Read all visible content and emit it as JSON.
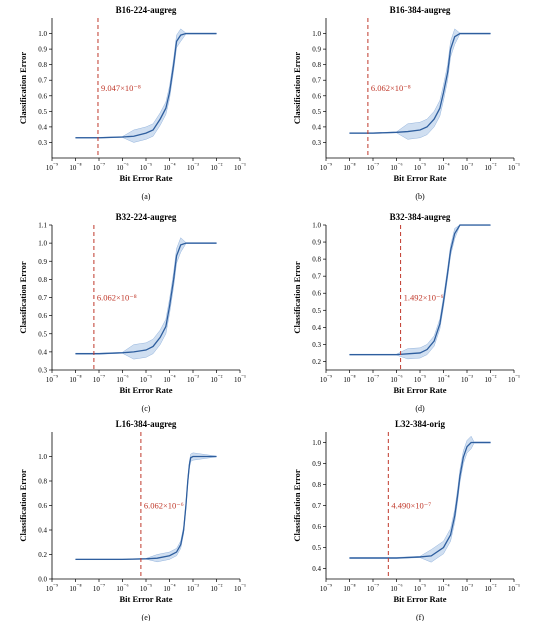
{
  "figure": {
    "xlabel": "Bit Error Rate",
    "ylabel": "Classification Error"
  },
  "chart_data": [
    {
      "type": "line",
      "title": "B16-224-augreg",
      "caption": "(a)",
      "xscale": "log",
      "xlim": [
        1e-09,
        0.1
      ],
      "ylim": [
        0.2,
        1.1
      ],
      "yticks": [
        0.3,
        0.4,
        0.5,
        0.6,
        0.7,
        0.8,
        0.9,
        1.0
      ],
      "threshold": {
        "x": 9.047e-08,
        "label": "9.047×10⁻⁸"
      },
      "series": [
        {
          "x": [
            1e-08,
            1e-07,
            1e-06,
            3e-06,
            1e-05,
            2e-05,
            4e-05,
            7e-05,
            0.0001,
            0.00015,
            0.0002,
            0.0003,
            0.0005,
            0.001,
            0.01
          ],
          "y": [
            0.33,
            0.33,
            0.335,
            0.34,
            0.36,
            0.38,
            0.45,
            0.52,
            0.62,
            0.8,
            0.95,
            0.99,
            1.0,
            1.0,
            1.0
          ]
        }
      ],
      "band_width": 0.04,
      "band_span": [
        3e-06,
        0.0003
      ]
    },
    {
      "type": "line",
      "title": "B16-384-augreg",
      "caption": "(b)",
      "xscale": "log",
      "xlim": [
        1e-09,
        0.1
      ],
      "ylim": [
        0.2,
        1.1
      ],
      "yticks": [
        0.3,
        0.4,
        0.5,
        0.6,
        0.7,
        0.8,
        0.9,
        1.0
      ],
      "threshold": {
        "x": 6.062e-08,
        "label": "6.062×10⁻⁸"
      },
      "series": [
        {
          "x": [
            1e-08,
            1e-07,
            1e-06,
            3e-06,
            1e-05,
            2e-05,
            4e-05,
            7e-05,
            0.0001,
            0.00015,
            0.0002,
            0.0003,
            0.0005,
            0.001,
            0.01
          ],
          "y": [
            0.36,
            0.36,
            0.365,
            0.37,
            0.38,
            0.4,
            0.45,
            0.52,
            0.62,
            0.75,
            0.9,
            0.98,
            1.0,
            1.0,
            1.0
          ]
        }
      ],
      "band_width": 0.05,
      "band_span": [
        3e-06,
        0.0003
      ]
    },
    {
      "type": "line",
      "title": "B32-224-augreg",
      "caption": "(c)",
      "xscale": "log",
      "xlim": [
        1e-09,
        0.1
      ],
      "ylim": [
        0.3,
        1.1
      ],
      "yticks": [
        0.3,
        0.4,
        0.5,
        0.6,
        0.7,
        0.8,
        0.9,
        1.0,
        1.1
      ],
      "threshold": {
        "x": 6.062e-08,
        "label": "6.062×10⁻⁸"
      },
      "series": [
        {
          "x": [
            1e-08,
            1e-07,
            1e-06,
            3e-06,
            1e-05,
            2e-05,
            4e-05,
            7e-05,
            0.0001,
            0.00015,
            0.0002,
            0.0003,
            0.0005,
            0.001,
            0.01
          ],
          "y": [
            0.39,
            0.39,
            0.395,
            0.4,
            0.41,
            0.43,
            0.48,
            0.54,
            0.65,
            0.8,
            0.93,
            0.99,
            1.0,
            1.0,
            1.0
          ]
        }
      ],
      "band_width": 0.04,
      "band_span": [
        3e-06,
        0.0003
      ]
    },
    {
      "type": "line",
      "title": "B32-384-augreg",
      "caption": "(d)",
      "xscale": "log",
      "xlim": [
        1e-09,
        0.1
      ],
      "ylim": [
        0.15,
        1.0
      ],
      "yticks": [
        0.2,
        0.3,
        0.4,
        0.5,
        0.6,
        0.7,
        0.8,
        0.9,
        1.0
      ],
      "threshold": {
        "x": 1.492e-06,
        "label": "1.492×10⁻⁶"
      },
      "series": [
        {
          "x": [
            1e-08,
            1e-07,
            1e-06,
            3e-06,
            1e-05,
            2e-05,
            4e-05,
            7e-05,
            0.0001,
            0.00015,
            0.0002,
            0.0003,
            0.0005,
            0.001,
            0.01
          ],
          "y": [
            0.24,
            0.24,
            0.24,
            0.245,
            0.25,
            0.27,
            0.32,
            0.42,
            0.55,
            0.72,
            0.85,
            0.95,
            1.0,
            1.0,
            1.0
          ]
        }
      ],
      "band_width": 0.03,
      "band_span": [
        3e-06,
        0.0003
      ]
    },
    {
      "type": "line",
      "title": "L16-384-augreg",
      "caption": "(e)",
      "xscale": "log",
      "xlim": [
        1e-09,
        0.1
      ],
      "ylim": [
        0.0,
        1.2
      ],
      "yticks": [
        0.0,
        0.2,
        0.4,
        0.6,
        0.8,
        1.0
      ],
      "threshold": {
        "x": 6.062e-06,
        "label": "6.062×10⁻⁶"
      },
      "series": [
        {
          "x": [
            1e-08,
            1e-07,
            1e-06,
            1e-05,
            3e-05,
            0.0001,
            0.0002,
            0.0003,
            0.0004,
            0.0005,
            0.0006,
            0.0007,
            0.0008,
            0.001,
            0.01
          ],
          "y": [
            0.16,
            0.16,
            0.16,
            0.165,
            0.17,
            0.19,
            0.22,
            0.28,
            0.4,
            0.6,
            0.8,
            0.93,
            0.99,
            1.0,
            1.0
          ]
        }
      ],
      "band_width": 0.03,
      "band_span": [
        3e-05,
        0.001
      ]
    },
    {
      "type": "line",
      "title": "L32-384-orig",
      "caption": "(f)",
      "xscale": "log",
      "xlim": [
        1e-09,
        0.1
      ],
      "ylim": [
        0.35,
        1.05
      ],
      "yticks": [
        0.4,
        0.5,
        0.6,
        0.7,
        0.8,
        0.9,
        1.0
      ],
      "threshold": {
        "x": 4.49e-07,
        "label": "4.490×10⁻⁷"
      },
      "series": [
        {
          "x": [
            1e-08,
            1e-07,
            1e-06,
            1e-05,
            3e-05,
            0.0001,
            0.0002,
            0.0003,
            0.0004,
            0.0005,
            0.0007,
            0.001,
            0.0015,
            0.002,
            0.01
          ],
          "y": [
            0.45,
            0.45,
            0.45,
            0.455,
            0.46,
            0.5,
            0.56,
            0.65,
            0.75,
            0.84,
            0.93,
            0.98,
            1.0,
            1.0,
            1.0
          ]
        }
      ],
      "band_width": 0.03,
      "band_span": [
        3e-05,
        0.0015
      ]
    }
  ]
}
